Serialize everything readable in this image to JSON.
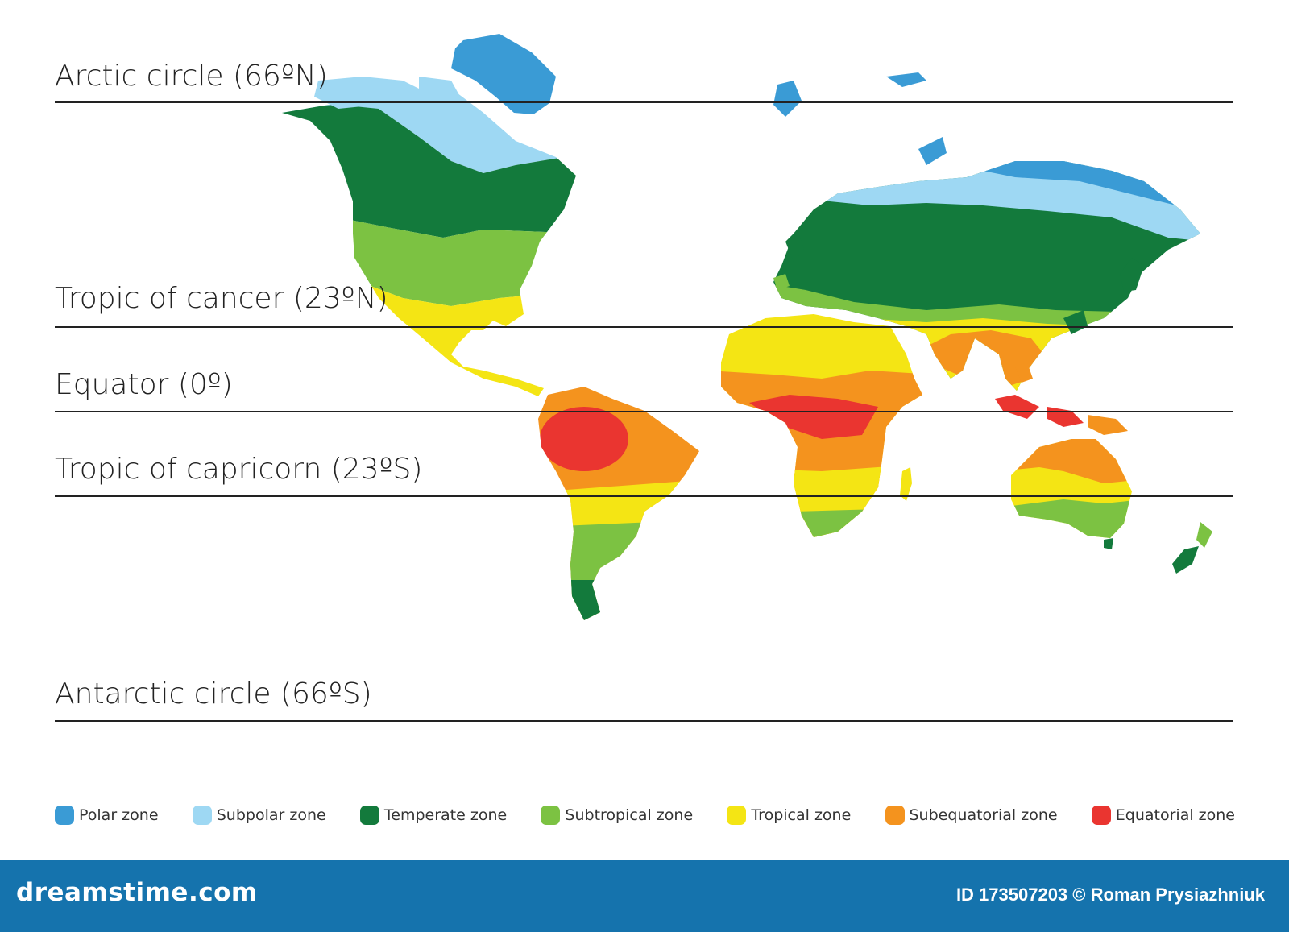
{
  "latitude_lines": [
    {
      "id": "arctic",
      "label": "Arctic circle (66ºN)"
    },
    {
      "id": "cancer",
      "label": "Tropic of cancer (23ºN)"
    },
    {
      "id": "equator",
      "label": "Equator (0º)"
    },
    {
      "id": "capricorn",
      "label": "Tropic of capricorn (23ºS)"
    },
    {
      "id": "antarctic",
      "label": "Antarctic circle (66ºS)"
    }
  ],
  "legend": [
    {
      "label": "Polar zone",
      "color": "#3a9bd5"
    },
    {
      "label": "Subpolar zone",
      "color": "#9ed8f3"
    },
    {
      "label": "Temperate zone",
      "color": "#137a3c"
    },
    {
      "label": "Subtropical zone",
      "color": "#7cc242"
    },
    {
      "label": "Tropical zone",
      "color": "#f4e514"
    },
    {
      "label": "Subequatorial zone",
      "color": "#f4931e"
    },
    {
      "label": "Equatorial zone",
      "color": "#ea3530"
    }
  ],
  "footer": {
    "logo": "dreamstime.com",
    "credit": "ID 173507203 © Roman Prysiazhniuk",
    "background": "#1573ad"
  }
}
